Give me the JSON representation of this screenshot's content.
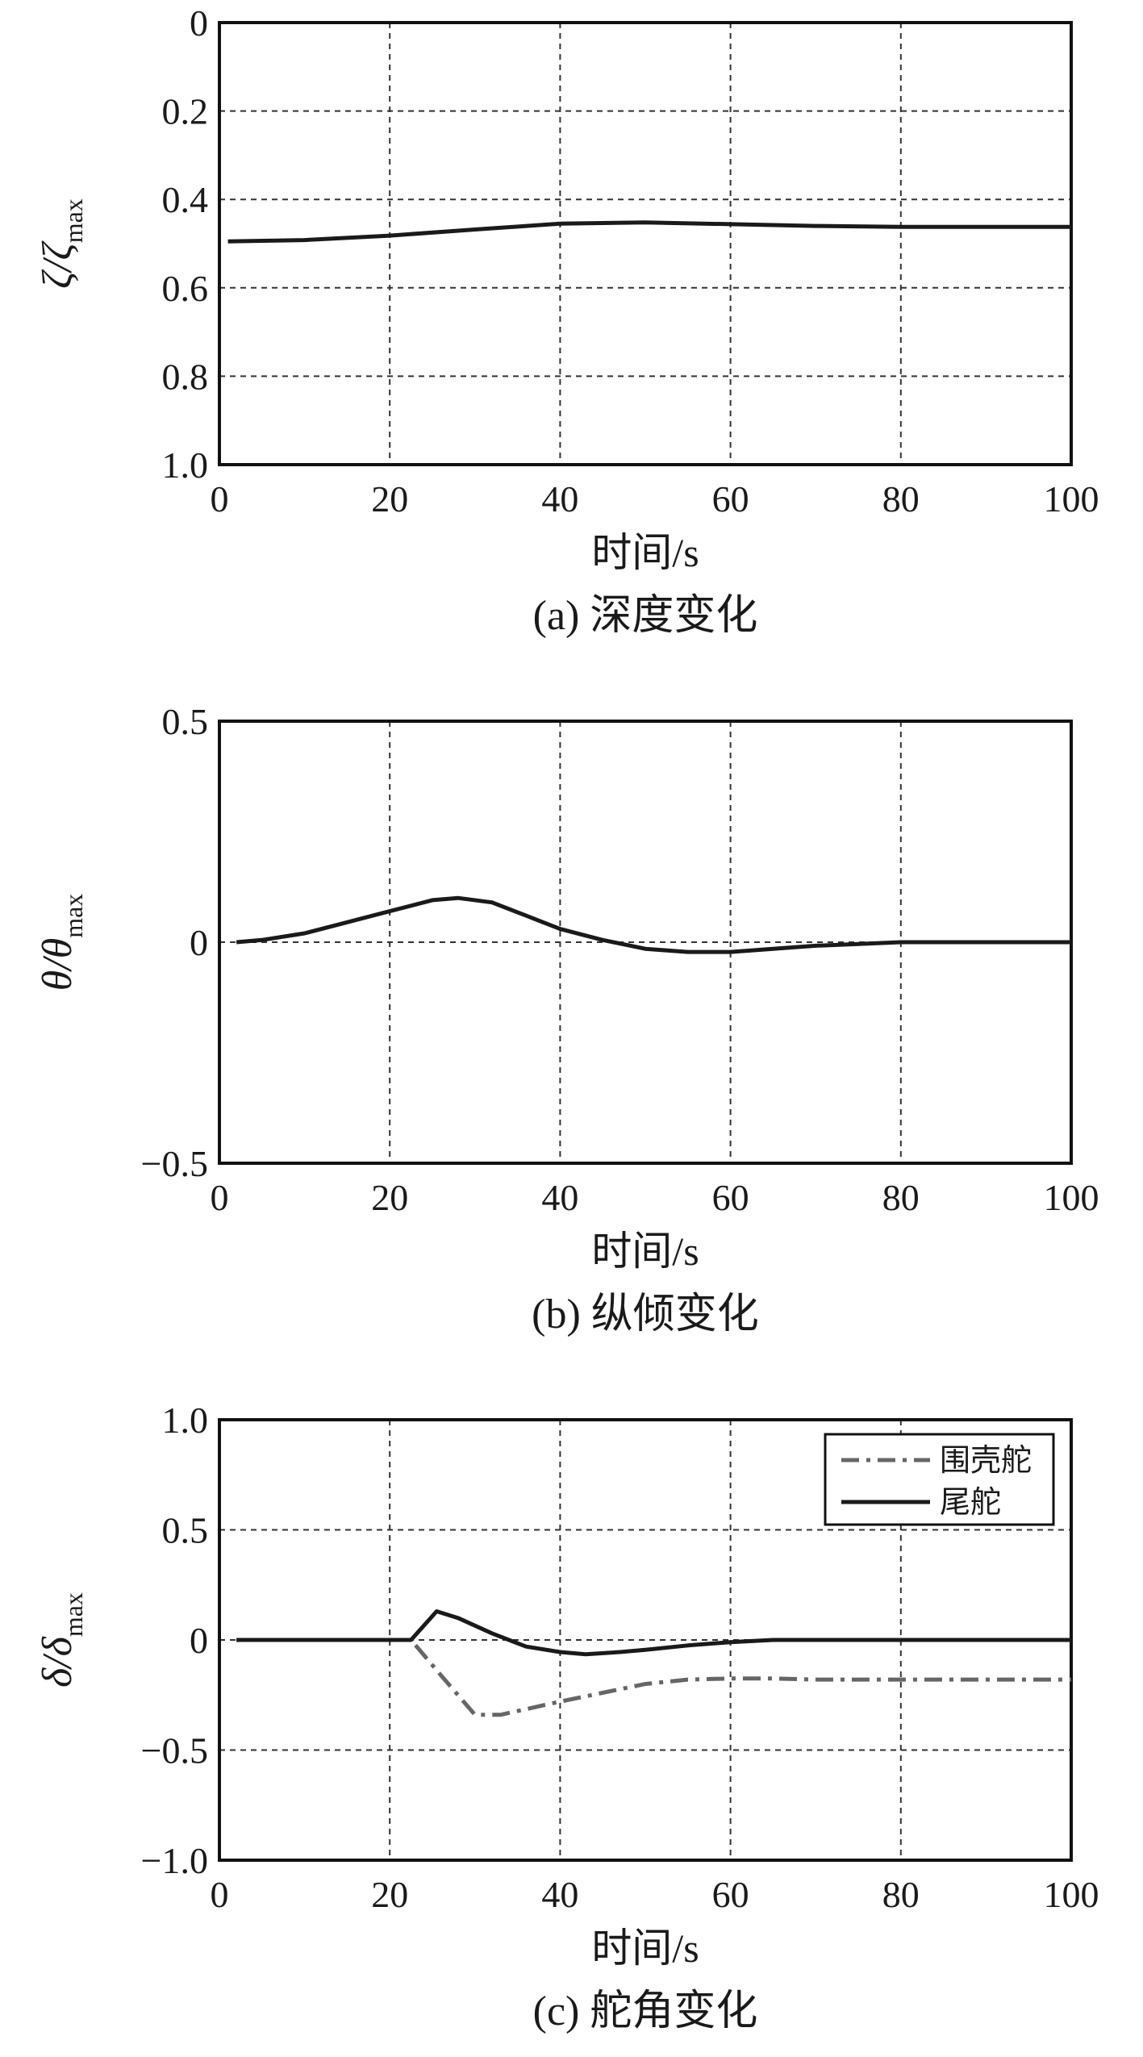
{
  "chart_data": [
    {
      "id": "a",
      "type": "line",
      "caption": "(a) 深度变化",
      "xlabel": "时间/s",
      "ylabel_main": "ζ/ζ",
      "ylabel_sub": "max",
      "xlim": [
        0,
        100
      ],
      "ylim": [
        0,
        1.0
      ],
      "y_inverted": true,
      "xticks": [
        0,
        20,
        40,
        60,
        80,
        100
      ],
      "yticks": [
        0,
        0.2,
        0.4,
        0.6,
        0.8,
        1.0
      ],
      "ytick_labels": [
        "0",
        "0.2",
        "0.4",
        "0.6",
        "0.8",
        "1.0"
      ],
      "grid": true,
      "legend": "none",
      "series": [
        {
          "name": "",
          "color": "#1a1a1a",
          "dash": "solid",
          "x": [
            1,
            10,
            20,
            30,
            40,
            50,
            60,
            70,
            80,
            90,
            100
          ],
          "y": [
            0.495,
            0.492,
            0.482,
            0.468,
            0.455,
            0.452,
            0.456,
            0.46,
            0.462,
            0.462,
            0.462
          ]
        }
      ]
    },
    {
      "id": "b",
      "type": "line",
      "caption": "(b) 纵倾变化",
      "xlabel": "时间/s",
      "ylabel_main": "θ/θ",
      "ylabel_sub": "max",
      "xlim": [
        0,
        100
      ],
      "ylim": [
        -0.5,
        0.5
      ],
      "y_inverted": false,
      "xticks": [
        0,
        20,
        40,
        60,
        80,
        100
      ],
      "yticks": [
        -0.5,
        0,
        0.5
      ],
      "ytick_labels": [
        "−0.5",
        "0",
        "0.5"
      ],
      "grid": true,
      "legend": "none",
      "series": [
        {
          "name": "",
          "color": "#1a1a1a",
          "dash": "solid",
          "x": [
            2,
            5,
            10,
            15,
            20,
            25,
            28,
            32,
            36,
            40,
            45,
            50,
            55,
            60,
            65,
            70,
            75,
            80,
            90,
            100
          ],
          "y": [
            0,
            0.005,
            0.02,
            0.045,
            0.07,
            0.095,
            0.1,
            0.09,
            0.06,
            0.03,
            0.005,
            -0.015,
            -0.022,
            -0.022,
            -0.015,
            -0.008,
            -0.004,
            0,
            0,
            0
          ]
        }
      ]
    },
    {
      "id": "c",
      "type": "line",
      "caption": "(c) 舵角变化",
      "xlabel": "时间/s",
      "ylabel_main": "δ/δ",
      "ylabel_sub": "max",
      "xlim": [
        0,
        100
      ],
      "ylim": [
        -1.0,
        1.0
      ],
      "y_inverted": false,
      "xticks": [
        0,
        20,
        40,
        60,
        80,
        100
      ],
      "yticks": [
        -1.0,
        -0.5,
        0,
        0.5,
        1.0
      ],
      "ytick_labels": [
        "−1.0",
        "−0.5",
        "0",
        "0.5",
        "1.0"
      ],
      "grid": true,
      "legend": "top-right",
      "series": [
        {
          "name": "围壳舵",
          "color": "#666666",
          "dash": "dashdot",
          "x": [
            2,
            10,
            20,
            22.5,
            26,
            30,
            33,
            40,
            45,
            50,
            55,
            60,
            65,
            70,
            80,
            90,
            100
          ],
          "y": [
            0,
            0,
            0,
            0,
            -0.16,
            -0.34,
            -0.34,
            -0.28,
            -0.24,
            -0.2,
            -0.18,
            -0.175,
            -0.175,
            -0.18,
            -0.18,
            -0.18,
            -0.18
          ]
        },
        {
          "name": "尾舵",
          "color": "#1a1a1a",
          "dash": "solid",
          "x": [
            2,
            10,
            20,
            22.5,
            25.5,
            28,
            32,
            36,
            40,
            43,
            47,
            50,
            55,
            60,
            65,
            70,
            80,
            90,
            100
          ],
          "y": [
            0,
            0,
            0,
            0,
            0.13,
            0.1,
            0.03,
            -0.03,
            -0.055,
            -0.065,
            -0.055,
            -0.045,
            -0.025,
            -0.01,
            0,
            0,
            0,
            0,
            0
          ]
        }
      ]
    }
  ]
}
